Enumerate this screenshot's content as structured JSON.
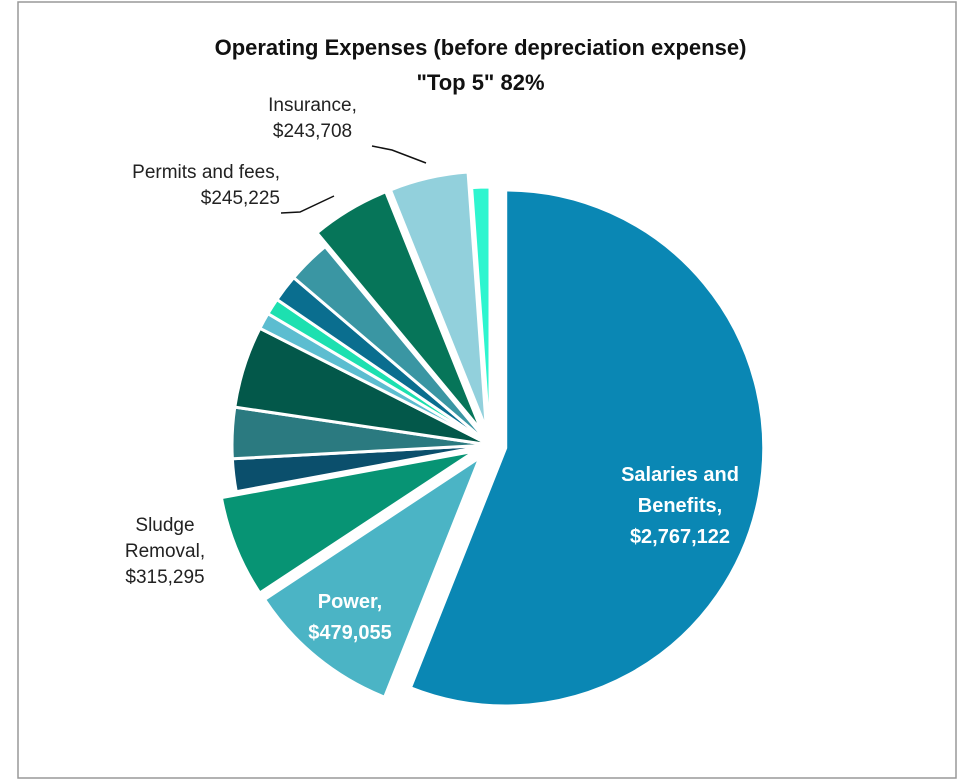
{
  "chart_data": {
    "type": "pie",
    "title": "Operating Expenses (before depreciation expense)",
    "subtitle": "\"Top 5\" 82%",
    "categories": [
      "Salaries and Benefits,",
      "Power,",
      "Sludge Removal,",
      null,
      null,
      null,
      null,
      null,
      null,
      null,
      "Permits and fees,",
      "Insurance,",
      null
    ],
    "values": [
      2767122,
      479055,
      315295,
      101000,
      158000,
      253000,
      51000,
      51000,
      84000,
      135000,
      245225,
      243708,
      56000
    ],
    "value_labels": [
      "$2,767,122",
      "$479,055",
      "$315,295",
      null,
      null,
      null,
      null,
      null,
      null,
      null,
      "$245,225",
      "$243,708",
      null
    ],
    "colors": [
      "#0a87b4",
      "#4bb4c5",
      "#079474",
      "#0b4f6c",
      "#2b7a80",
      "#03584a",
      "#5cbdd0",
      "#1de0b0",
      "#0a6e8f",
      "#3a96a3",
      "#067559",
      "#92d0dc",
      "#2ef5cf"
    ]
  }
}
